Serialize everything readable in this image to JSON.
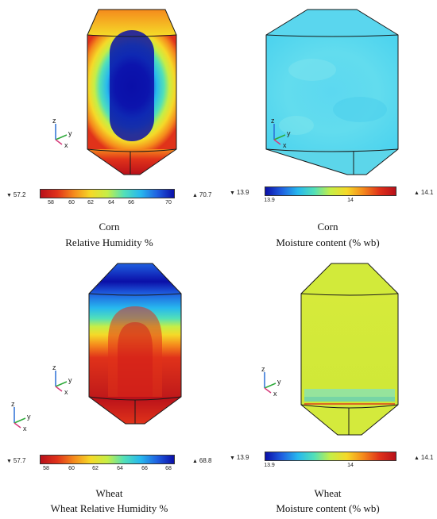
{
  "panels": [
    {
      "crop": "Corn",
      "quantity": "Relative Humidity %",
      "scale": {
        "min": "57.2",
        "max": "70.7",
        "ticks": [
          "58",
          "60",
          "62",
          "64",
          "66",
          "70"
        ]
      }
    },
    {
      "crop": "Corn",
      "quantity": "Moisture content (% wb)",
      "scale": {
        "min": "13.9",
        "max": "14.1",
        "ticks": [
          "13.9",
          "14"
        ]
      }
    },
    {
      "crop": "Wheat",
      "quantity": "Wheat Relative Humidity %",
      "scale": {
        "min": "57.7",
        "max": "68.8",
        "ticks": [
          "58",
          "60",
          "62",
          "64",
          "66",
          "68"
        ]
      }
    },
    {
      "crop": "Wheat",
      "quantity": "Moisture content (% wb)",
      "scale": {
        "min": "13.9",
        "max": "14.1",
        "ticks": [
          "13.9",
          "14"
        ]
      }
    }
  ],
  "axis_labels": {
    "z": "z",
    "y": "y",
    "x": "x"
  },
  "colors": {
    "scale": [
      "#0b0fa8",
      "#1f5fe0",
      "#27b8ee",
      "#52e0b8",
      "#c6ee46",
      "#f5d928",
      "#f58a1c",
      "#e0321a",
      "#b8101a"
    ],
    "outline": "#1a1a1a"
  }
}
